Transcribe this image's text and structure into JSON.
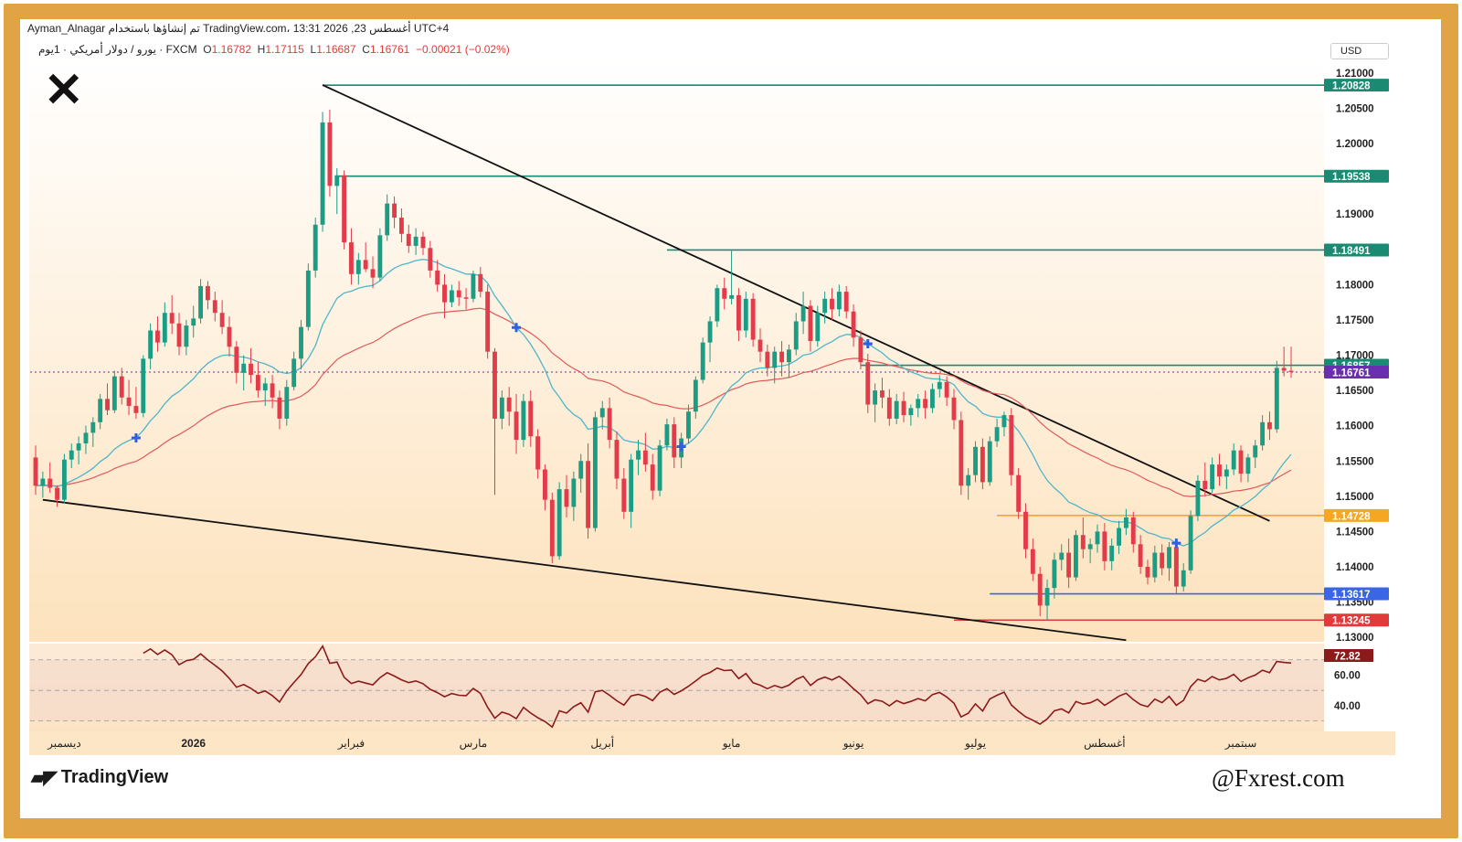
{
  "header": {
    "top_text": "Ayman_Alnagar تم إنشاؤها باستخدام TradingView.com، 13:31 2026 ,23 أغسطس UTC+4",
    "symbol": "يورو / دولار أمريكي · 1يوم · FXCM",
    "ohlc": {
      "o_label": "O",
      "o": "1.16782",
      "h_label": "H",
      "h": "1.17115",
      "l_label": "L",
      "l": "1.16687",
      "c_label": "C",
      "c": "1.16761",
      "change": "−0.00021 (−0.02%)"
    },
    "currency": "USD"
  },
  "footer": {
    "brand": "TradingView",
    "watermark": "@Fxrest.com"
  },
  "colors": {
    "frame": "#e0a447",
    "bull": "#1b9c85",
    "bear": "#e23b4a",
    "ema_fast": "#4fb6c9",
    "ema_slow": "#e05a5a",
    "rsi": "#8b1a1a",
    "level": "#1a8a73",
    "support_blue": "#3a66e6",
    "support_red": "#e03a3a",
    "orange": "#f5a623",
    "last_price": "#6a2fb0"
  },
  "chart_data": {
    "type": "candlestick",
    "y_axis": {
      "ticks": [
        "1.21000",
        "1.20500",
        "1.20000",
        "1.19500",
        "1.19000",
        "1.18500",
        "1.18000",
        "1.17500",
        "1.17000",
        "1.16500",
        "1.16000",
        "1.15500",
        "1.15000",
        "1.14500",
        "1.14000",
        "1.13500",
        "1.13000"
      ],
      "range": [
        1.1295,
        1.2118
      ]
    },
    "x_axis": {
      "labels": [
        "ديسمبر",
        "2026",
        "فبراير",
        "مارس",
        "أبريل",
        "مايو",
        "يونيو",
        "يوليو",
        "أغسطس",
        "سبتمبر"
      ],
      "label_positions": [
        4,
        22,
        44,
        61,
        79,
        97,
        114,
        131,
        149,
        168
      ]
    },
    "levels": [
      {
        "value": "1.20828",
        "color": "#1a8a73",
        "start": 40
      },
      {
        "value": "1.19538",
        "color": "#1a8a73",
        "start": 42
      },
      {
        "value": "1.18491",
        "color": "#1a8a73",
        "start": 88
      },
      {
        "value": "1.16857",
        "color": "#1a8a73",
        "start": 115
      },
      {
        "value": "1.16761",
        "color": "#6a2fb0",
        "start": 0,
        "dotted": true
      },
      {
        "value": "1.14728",
        "color": "#f5a623",
        "start": 134
      },
      {
        "value": "1.13617",
        "color": "#3a66e6",
        "start": 133
      },
      {
        "value": "1.13245",
        "color": "#e03a3a",
        "start": 128
      }
    ],
    "trendlines": [
      {
        "from": [
          40,
          1.2083
        ],
        "to": [
          172,
          1.1465
        ]
      },
      {
        "from": [
          1,
          1.1495
        ],
        "to": [
          152,
          1.1296
        ]
      }
    ],
    "candles": [
      [
        1.1555,
        1.1572,
        1.1502,
        1.1515
      ],
      [
        1.1515,
        1.1535,
        1.1498,
        1.1525
      ],
      [
        1.1525,
        1.1548,
        1.1505,
        1.1512
      ],
      [
        1.1512,
        1.1515,
        1.1485,
        1.1495
      ],
      [
        1.1495,
        1.156,
        1.149,
        1.1552
      ],
      [
        1.1552,
        1.1575,
        1.154,
        1.1565
      ],
      [
        1.1565,
        1.1585,
        1.1545,
        1.1575
      ],
      [
        1.1575,
        1.16,
        1.156,
        1.159
      ],
      [
        1.159,
        1.1612,
        1.157,
        1.1605
      ],
      [
        1.1605,
        1.1645,
        1.1595,
        1.1638
      ],
      [
        1.1638,
        1.166,
        1.1615,
        1.1622
      ],
      [
        1.1622,
        1.1678,
        1.1618,
        1.167
      ],
      [
        1.167,
        1.1682,
        1.163,
        1.164
      ],
      [
        1.164,
        1.1665,
        1.1615,
        1.1628
      ],
      [
        1.1628,
        1.1655,
        1.161,
        1.1618
      ],
      [
        1.1618,
        1.17,
        1.1612,
        1.1695
      ],
      [
        1.1695,
        1.1745,
        1.168,
        1.1735
      ],
      [
        1.1735,
        1.1755,
        1.1705,
        1.1718
      ],
      [
        1.1718,
        1.1775,
        1.1712,
        1.176
      ],
      [
        1.176,
        1.1785,
        1.173,
        1.1745
      ],
      [
        1.1745,
        1.176,
        1.17,
        1.1712
      ],
      [
        1.1712,
        1.175,
        1.17,
        1.1742
      ],
      [
        1.1742,
        1.177,
        1.1725,
        1.1752
      ],
      [
        1.1752,
        1.1808,
        1.1745,
        1.1798
      ],
      [
        1.1798,
        1.1805,
        1.1765,
        1.1778
      ],
      [
        1.1778,
        1.179,
        1.1748,
        1.176
      ],
      [
        1.176,
        1.1778,
        1.173,
        1.174
      ],
      [
        1.174,
        1.1755,
        1.1698,
        1.1712
      ],
      [
        1.1712,
        1.172,
        1.166,
        1.1675
      ],
      [
        1.1675,
        1.17,
        1.165,
        1.1688
      ],
      [
        1.1688,
        1.171,
        1.166,
        1.1672
      ],
      [
        1.1672,
        1.169,
        1.164,
        1.165
      ],
      [
        1.165,
        1.1668,
        1.1628,
        1.166
      ],
      [
        1.166,
        1.1672,
        1.1625,
        1.164
      ],
      [
        1.164,
        1.165,
        1.1595,
        1.161
      ],
      [
        1.161,
        1.1665,
        1.16,
        1.1655
      ],
      [
        1.1655,
        1.1705,
        1.165,
        1.1695
      ],
      [
        1.1695,
        1.175,
        1.168,
        1.174
      ],
      [
        1.174,
        1.183,
        1.1735,
        1.182
      ],
      [
        1.182,
        1.1895,
        1.181,
        1.1885
      ],
      [
        1.1885,
        1.2045,
        1.1875,
        1.203
      ],
      [
        1.203,
        1.2048,
        1.1925,
        1.194
      ],
      [
        1.194,
        1.1965,
        1.19,
        1.1955
      ],
      [
        1.1955,
        1.1962,
        1.185,
        1.186
      ],
      [
        1.186,
        1.188,
        1.18,
        1.1815
      ],
      [
        1.1815,
        1.1845,
        1.18,
        1.1835
      ],
      [
        1.1835,
        1.186,
        1.1818,
        1.1822
      ],
      [
        1.1822,
        1.184,
        1.1795,
        1.181
      ],
      [
        1.181,
        1.188,
        1.1805,
        1.187
      ],
      [
        1.187,
        1.1928,
        1.1862,
        1.1915
      ],
      [
        1.1915,
        1.1925,
        1.188,
        1.1895
      ],
      [
        1.1895,
        1.1908,
        1.186,
        1.1872
      ],
      [
        1.1872,
        1.1885,
        1.1845,
        1.1855
      ],
      [
        1.1855,
        1.188,
        1.1842,
        1.1868
      ],
      [
        1.1868,
        1.1875,
        1.1842,
        1.1852
      ],
      [
        1.1852,
        1.1862,
        1.181,
        1.182
      ],
      [
        1.182,
        1.1835,
        1.179,
        1.18
      ],
      [
        1.18,
        1.1815,
        1.1752,
        1.1775
      ],
      [
        1.1775,
        1.18,
        1.1768,
        1.1792
      ],
      [
        1.1792,
        1.1805,
        1.177,
        1.1782
      ],
      [
        1.1782,
        1.1795,
        1.1765,
        1.178
      ],
      [
        1.178,
        1.182,
        1.1775,
        1.1815
      ],
      [
        1.1815,
        1.1825,
        1.1782,
        1.179
      ],
      [
        1.179,
        1.18,
        1.1695,
        1.1705
      ],
      [
        1.1705,
        1.171,
        1.1502,
        1.161
      ],
      [
        1.161,
        1.165,
        1.1595,
        1.164
      ],
      [
        1.164,
        1.1655,
        1.16,
        1.162
      ],
      [
        1.162,
        1.1645,
        1.156,
        1.158
      ],
      [
        1.158,
        1.1645,
        1.157,
        1.1635
      ],
      [
        1.1635,
        1.165,
        1.157,
        1.1585
      ],
      [
        1.1585,
        1.1595,
        1.1525,
        1.1538
      ],
      [
        1.1538,
        1.1545,
        1.148,
        1.1495
      ],
      [
        1.1495,
        1.1505,
        1.1405,
        1.1415
      ],
      [
        1.1415,
        1.152,
        1.141,
        1.151
      ],
      [
        1.151,
        1.153,
        1.147,
        1.1485
      ],
      [
        1.1485,
        1.1535,
        1.1465,
        1.1525
      ],
      [
        1.1525,
        1.156,
        1.1505,
        1.155
      ],
      [
        1.155,
        1.1575,
        1.144,
        1.1455
      ],
      [
        1.1455,
        1.162,
        1.145,
        1.1612
      ],
      [
        1.1612,
        1.1635,
        1.1595,
        1.1625
      ],
      [
        1.1625,
        1.164,
        1.1568,
        1.158
      ],
      [
        1.158,
        1.1592,
        1.151,
        1.1525
      ],
      [
        1.1525,
        1.154,
        1.1468,
        1.1478
      ],
      [
        1.1478,
        1.156,
        1.1455,
        1.1552
      ],
      [
        1.1552,
        1.158,
        1.153,
        1.1565
      ],
      [
        1.1565,
        1.159,
        1.1535,
        1.1545
      ],
      [
        1.1545,
        1.156,
        1.1495,
        1.1508
      ],
      [
        1.1508,
        1.158,
        1.15,
        1.1572
      ],
      [
        1.1572,
        1.161,
        1.1565,
        1.1602
      ],
      [
        1.1602,
        1.1612,
        1.154,
        1.1555
      ],
      [
        1.1555,
        1.159,
        1.154,
        1.1582
      ],
      [
        1.1582,
        1.163,
        1.1575,
        1.162
      ],
      [
        1.162,
        1.167,
        1.161,
        1.1665
      ],
      [
        1.1665,
        1.1725,
        1.166,
        1.1718
      ],
      [
        1.1718,
        1.1755,
        1.169,
        1.1748
      ],
      [
        1.1748,
        1.18,
        1.174,
        1.1795
      ],
      [
        1.1795,
        1.181,
        1.1765,
        1.178
      ],
      [
        1.178,
        1.1848,
        1.1772,
        1.1785
      ],
      [
        1.1785,
        1.1795,
        1.172,
        1.1735
      ],
      [
        1.1735,
        1.179,
        1.1725,
        1.178
      ],
      [
        1.178,
        1.1788,
        1.1712,
        1.1722
      ],
      [
        1.1722,
        1.1738,
        1.169,
        1.1705
      ],
      [
        1.1705,
        1.1715,
        1.167,
        1.1682
      ],
      [
        1.1682,
        1.1712,
        1.166,
        1.1705
      ],
      [
        1.1705,
        1.172,
        1.167,
        1.169
      ],
      [
        1.169,
        1.1715,
        1.1668,
        1.1708
      ],
      [
        1.1708,
        1.176,
        1.17,
        1.1748
      ],
      [
        1.1748,
        1.179,
        1.173,
        1.177
      ],
      [
        1.177,
        1.1778,
        1.1705,
        1.172
      ],
      [
        1.172,
        1.177,
        1.1712,
        1.176
      ],
      [
        1.176,
        1.179,
        1.1745,
        1.178
      ],
      [
        1.178,
        1.1795,
        1.175,
        1.1765
      ],
      [
        1.1765,
        1.18,
        1.1755,
        1.179
      ],
      [
        1.179,
        1.1798,
        1.1752,
        1.1762
      ],
      [
        1.1762,
        1.1772,
        1.1712,
        1.1725
      ],
      [
        1.1725,
        1.1735,
        1.168,
        1.169
      ],
      [
        1.169,
        1.1702,
        1.1618,
        1.163
      ],
      [
        1.163,
        1.166,
        1.1605,
        1.165
      ],
      [
        1.165,
        1.1668,
        1.1625,
        1.164
      ],
      [
        1.164,
        1.1652,
        1.16,
        1.161
      ],
      [
        1.161,
        1.1645,
        1.1602,
        1.1635
      ],
      [
        1.1635,
        1.1648,
        1.1605,
        1.1615
      ],
      [
        1.1615,
        1.163,
        1.16,
        1.1625
      ],
      [
        1.1625,
        1.1645,
        1.1612,
        1.1638
      ],
      [
        1.1638,
        1.165,
        1.161,
        1.1625
      ],
      [
        1.1625,
        1.166,
        1.1618,
        1.1652
      ],
      [
        1.1652,
        1.1672,
        1.164,
        1.1662
      ],
      [
        1.1662,
        1.167,
        1.1628,
        1.164
      ],
      [
        1.164,
        1.1652,
        1.1595,
        1.1608
      ],
      [
        1.1608,
        1.162,
        1.1502,
        1.1515
      ],
      [
        1.1515,
        1.154,
        1.1495,
        1.153
      ],
      [
        1.153,
        1.1578,
        1.152,
        1.157
      ],
      [
        1.157,
        1.1582,
        1.151,
        1.152
      ],
      [
        1.152,
        1.1585,
        1.1515,
        1.1578
      ],
      [
        1.1578,
        1.161,
        1.157,
        1.1598
      ],
      [
        1.1598,
        1.162,
        1.1585,
        1.1615
      ],
      [
        1.1615,
        1.1625,
        1.1515,
        1.153
      ],
      [
        1.153,
        1.154,
        1.1468,
        1.1478
      ],
      [
        1.1478,
        1.149,
        1.1412,
        1.1425
      ],
      [
        1.1425,
        1.144,
        1.138,
        1.139
      ],
      [
        1.139,
        1.14,
        1.133,
        1.1345
      ],
      [
        1.1345,
        1.1382,
        1.1325,
        1.137
      ],
      [
        1.137,
        1.142,
        1.1355,
        1.141
      ],
      [
        1.141,
        1.1432,
        1.1395,
        1.142
      ],
      [
        1.142,
        1.144,
        1.137,
        1.1385
      ],
      [
        1.1385,
        1.1452,
        1.138,
        1.1445
      ],
      [
        1.1445,
        1.147,
        1.1412,
        1.1425
      ],
      [
        1.1425,
        1.144,
        1.1405,
        1.1432
      ],
      [
        1.1432,
        1.146,
        1.142,
        1.145
      ],
      [
        1.145,
        1.1462,
        1.1395,
        1.1408
      ],
      [
        1.1408,
        1.144,
        1.1395,
        1.143
      ],
      [
        1.143,
        1.1465,
        1.1418,
        1.1455
      ],
      [
        1.1455,
        1.1482,
        1.1445,
        1.147
      ],
      [
        1.147,
        1.1478,
        1.142,
        1.1432
      ],
      [
        1.1432,
        1.1445,
        1.139,
        1.14
      ],
      [
        1.14,
        1.141,
        1.1375,
        1.1385
      ],
      [
        1.1385,
        1.143,
        1.1378,
        1.142
      ],
      [
        1.142,
        1.1432,
        1.1388,
        1.1398
      ],
      [
        1.1398,
        1.1435,
        1.138,
        1.1428
      ],
      [
        1.1428,
        1.144,
        1.1362,
        1.1372
      ],
      [
        1.1372,
        1.1405,
        1.1365,
        1.1395
      ],
      [
        1.1395,
        1.148,
        1.139,
        1.1472
      ],
      [
        1.1472,
        1.153,
        1.1465,
        1.1522
      ],
      [
        1.1522,
        1.1548,
        1.15,
        1.151
      ],
      [
        1.151,
        1.1555,
        1.1505,
        1.1545
      ],
      [
        1.1545,
        1.156,
        1.1515,
        1.1528
      ],
      [
        1.1528,
        1.1545,
        1.151,
        1.1538
      ],
      [
        1.1538,
        1.1575,
        1.153,
        1.1565
      ],
      [
        1.1565,
        1.1572,
        1.152,
        1.1532
      ],
      [
        1.1532,
        1.156,
        1.152,
        1.1555
      ],
      [
        1.1555,
        1.158,
        1.154,
        1.1572
      ],
      [
        1.1572,
        1.1615,
        1.1565,
        1.1605
      ],
      [
        1.1605,
        1.162,
        1.158,
        1.1595
      ],
      [
        1.1595,
        1.1692,
        1.159,
        1.1682
      ],
      [
        1.1682,
        1.1712,
        1.167,
        1.1678
      ],
      [
        1.1678,
        1.1712,
        1.1668,
        1.1676
      ]
    ],
    "ema_fast_name": "EMA fast",
    "ema_slow_name": "EMA slow",
    "crosses": [
      14,
      67,
      90,
      116,
      159
    ],
    "rsi": {
      "value": "72.82",
      "ticks": [
        "60.00",
        "40.00"
      ],
      "levels": [
        70,
        50,
        30
      ],
      "range": [
        25,
        80
      ]
    }
  }
}
